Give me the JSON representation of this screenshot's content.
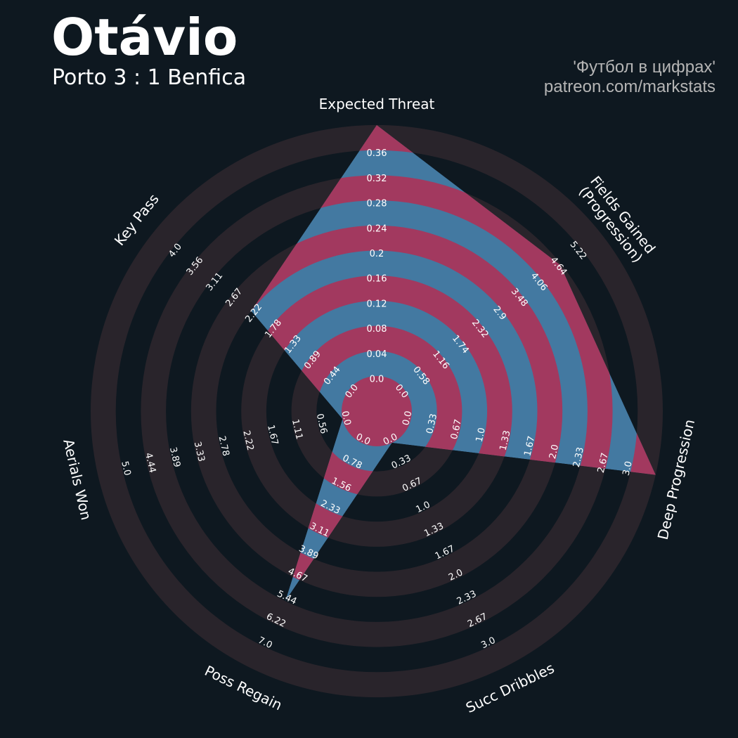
{
  "header": {
    "title": "Otávio",
    "subtitle": "Porto 3 : 1 Benfica",
    "credit_line1": "'Футбол в цифрах'",
    "credit_line2": "patreon.com/markstats"
  },
  "colors": {
    "background": "#0e1820",
    "ring_band": "#29242b",
    "radar_blue": "#4379a1",
    "radar_pink": "#a2395f",
    "text": "#ffffff",
    "credit_text": "#b5b5b5"
  },
  "chart_data": {
    "type": "radar",
    "title": "Otávio",
    "subtitle": "Porto 3 : 1 Benfica",
    "legend": false,
    "grid": "concentric alternating bands",
    "axes": [
      {
        "label": "Expected Threat",
        "range": [
          0.0,
          0.36
        ],
        "ticks": [
          "0.0",
          "0.04",
          "0.08",
          "0.12",
          "0.16",
          "0.2",
          "0.24",
          "0.28",
          "0.32",
          "0.36"
        ],
        "value": 0.36
      },
      {
        "label": "Fields Gained\n(Progression)",
        "range": [
          0.0,
          5.22
        ],
        "ticks": [
          "0.0",
          "0.58",
          "1.16",
          "1.74",
          "2.32",
          "2.9",
          "3.48",
          "4.06",
          "4.64",
          "5.22"
        ],
        "value": 4.15
      },
      {
        "label": "Deep Progression",
        "range": [
          0.0,
          3.0
        ],
        "ticks": [
          "0.0",
          "0.33",
          "0.67",
          "1.0",
          "1.33",
          "1.67",
          "2.0",
          "2.33",
          "2.67",
          "3.0"
        ],
        "value": 3.0
      },
      {
        "label": "Succ Dribbles",
        "range": [
          0.0,
          3.0
        ],
        "ticks": [
          "0.0",
          "0.33",
          "0.67",
          "1.0",
          "1.33",
          "1.67",
          "2.0",
          "2.33",
          "2.67",
          "3.0"
        ],
        "value": 0.0
      },
      {
        "label": "Poss Regain",
        "range": [
          0.0,
          7.0
        ],
        "ticks": [
          "0.0",
          "0.78",
          "1.56",
          "2.33",
          "3.11",
          "3.89",
          "4.67",
          "5.44",
          "6.22",
          "7.0"
        ],
        "value": 4.9
      },
      {
        "label": "Aerials Won",
        "range": [
          0.0,
          5.0
        ],
        "ticks": [
          "0.0",
          "0.56",
          "1.11",
          "1.67",
          "2.22",
          "2.78",
          "3.33",
          "3.89",
          "4.44",
          "5.0"
        ],
        "value": 0.0
      },
      {
        "label": "Key Pass",
        "range": [
          0.0,
          4.0
        ],
        "ticks": [
          "0.0",
          "0.44",
          "0.89",
          "1.33",
          "1.78",
          "2.22",
          "2.67",
          "3.11",
          "3.56",
          "4.0"
        ],
        "value": 2.0
      }
    ]
  }
}
